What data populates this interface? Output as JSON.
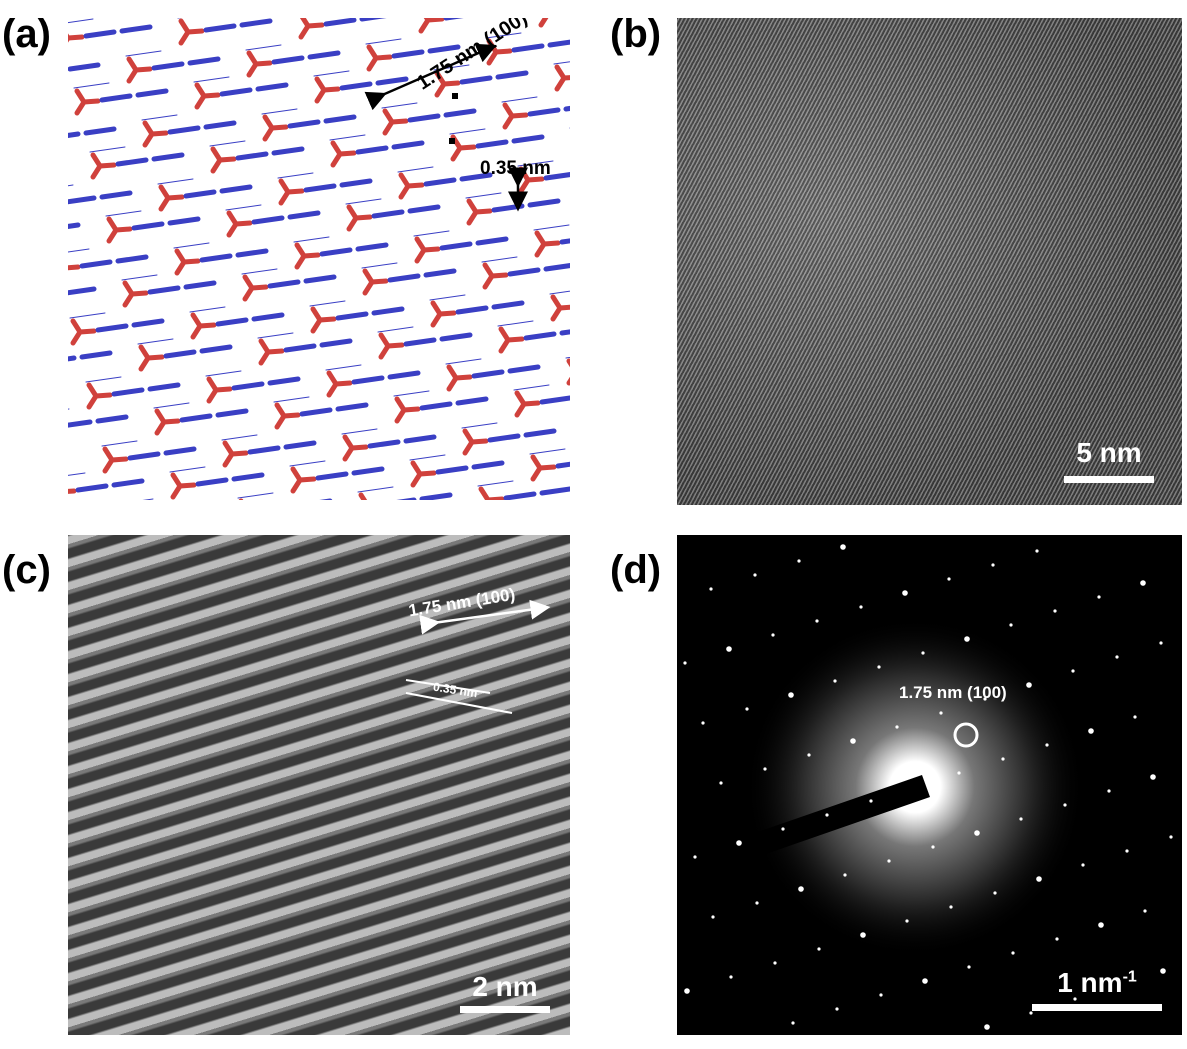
{
  "panels": {
    "a": {
      "label": "(a)",
      "annotation_period": "1.75 nm (100)",
      "annotation_stack": "0.35 nm",
      "colors": {
        "node": "#d0413c",
        "linker": "#3a3fc4"
      }
    },
    "b": {
      "label": "(b)",
      "scale_bar": "5 nm"
    },
    "c": {
      "label": "(c)",
      "annotation_period": "1.75 nm (100)",
      "annotation_stack": "0.35 nm",
      "scale_bar": "2 nm"
    },
    "d": {
      "label": "(d)",
      "annotation_spot": "1.75 nm (100)",
      "scale_bar": "1 nm",
      "scale_bar_sup": "-1"
    }
  }
}
